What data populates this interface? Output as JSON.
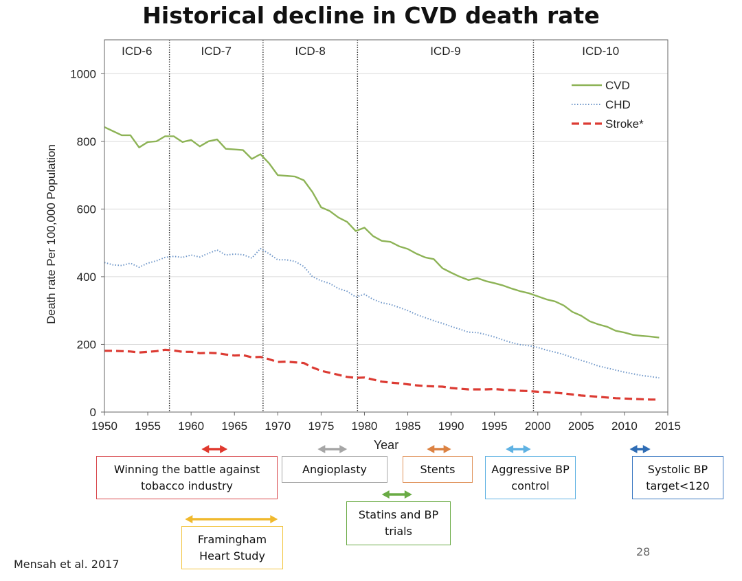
{
  "slide": {
    "title": "Historical decline in CVD death rate",
    "citation": "Mensah et al. 2017",
    "page_number": "28"
  },
  "chart_data": {
    "type": "line",
    "title": "",
    "xlabel": "Year",
    "ylabel": "Death rate Per 100,000 Population",
    "xlim": [
      1950,
      2015
    ],
    "ylim": [
      0,
      1100
    ],
    "x_ticks": [
      1950,
      1955,
      1960,
      1965,
      1970,
      1975,
      1980,
      1985,
      1990,
      1995,
      2000,
      2005,
      2010,
      2015
    ],
    "y_ticks": [
      0,
      200,
      400,
      600,
      800,
      1000
    ],
    "grid": "horizontal",
    "legend_position": "top-right",
    "icd_eras": [
      {
        "label": "ICD-6",
        "start": 1950,
        "end": 1957.5
      },
      {
        "label": "ICD-7",
        "start": 1957.5,
        "end": 1968.3
      },
      {
        "label": "ICD-8",
        "start": 1968.3,
        "end": 1979.2
      },
      {
        "label": "ICD-9",
        "start": 1979.2,
        "end": 1999.5
      },
      {
        "label": "ICD-10",
        "start": 1999.5,
        "end": 2015
      }
    ],
    "series": [
      {
        "name": "CVD",
        "color": "#8db356",
        "style": "solid",
        "x": [
          1950,
          1951,
          1952,
          1953,
          1954,
          1955,
          1956,
          1957,
          1958,
          1959,
          1960,
          1961,
          1962,
          1963,
          1964,
          1965,
          1966,
          1967,
          1968,
          1969,
          1970,
          1971,
          1972,
          1973,
          1974,
          1975,
          1976,
          1977,
          1978,
          1979,
          1980,
          1981,
          1982,
          1983,
          1984,
          1985,
          1986,
          1987,
          1988,
          1989,
          1990,
          1991,
          1992,
          1993,
          1994,
          1995,
          1996,
          1997,
          1998,
          1999,
          2000,
          2001,
          2002,
          2003,
          2004,
          2005,
          2006,
          2007,
          2008,
          2009,
          2010,
          2011,
          2012,
          2013,
          2014
        ],
        "values": [
          842,
          830,
          818,
          818,
          782,
          798,
          800,
          815,
          815,
          798,
          804,
          785,
          800,
          806,
          778,
          776,
          774,
          748,
          762,
          735,
          700,
          698,
          696,
          685,
          650,
          605,
          594,
          575,
          562,
          535,
          545,
          520,
          506,
          503,
          490,
          482,
          468,
          457,
          452,
          425,
          412,
          400,
          390,
          396,
          387,
          381,
          374,
          365,
          357,
          351,
          342,
          333,
          327,
          315,
          296,
          285,
          268,
          259,
          252,
          240,
          235,
          228,
          225,
          223,
          220
        ]
      },
      {
        "name": "CHD",
        "color": "#6f97c9",
        "style": "dotted",
        "x": [
          1950,
          1951,
          1952,
          1953,
          1954,
          1955,
          1956,
          1957,
          1958,
          1959,
          1960,
          1961,
          1962,
          1963,
          1964,
          1965,
          1966,
          1967,
          1968,
          1969,
          1970,
          1971,
          1972,
          1973,
          1974,
          1975,
          1976,
          1977,
          1978,
          1979,
          1980,
          1981,
          1982,
          1983,
          1984,
          1985,
          1986,
          1987,
          1988,
          1989,
          1990,
          1991,
          1992,
          1993,
          1994,
          1995,
          1996,
          1997,
          1998,
          1999,
          2000,
          2001,
          2002,
          2003,
          2004,
          2005,
          2006,
          2007,
          2008,
          2009,
          2010,
          2011,
          2012,
          2013,
          2014
        ],
        "values": [
          442,
          435,
          433,
          440,
          428,
          440,
          447,
          457,
          460,
          457,
          464,
          458,
          469,
          479,
          464,
          467,
          465,
          455,
          483,
          468,
          450,
          450,
          445,
          430,
          400,
          388,
          380,
          365,
          357,
          340,
          348,
          333,
          323,
          318,
          309,
          300,
          288,
          279,
          270,
          262,
          253,
          245,
          236,
          235,
          229,
          222,
          213,
          205,
          199,
          196,
          191,
          183,
          177,
          170,
          161,
          153,
          145,
          136,
          130,
          124,
          118,
          113,
          108,
          105,
          101
        ]
      },
      {
        "name": "Stroke*",
        "color": "#dc3b33",
        "style": "dashed",
        "x": [
          1950,
          1951,
          1952,
          1953,
          1954,
          1955,
          1956,
          1957,
          1958,
          1959,
          1960,
          1961,
          1962,
          1963,
          1964,
          1965,
          1966,
          1967,
          1968,
          1969,
          1970,
          1971,
          1972,
          1973,
          1974,
          1975,
          1976,
          1977,
          1978,
          1979,
          1980,
          1981,
          1982,
          1983,
          1984,
          1985,
          1986,
          1987,
          1988,
          1989,
          1990,
          1991,
          1992,
          1993,
          1994,
          1995,
          1996,
          1997,
          1998,
          1999,
          2000,
          2001,
          2002,
          2003,
          2004,
          2005,
          2006,
          2007,
          2008,
          2009,
          2010,
          2011,
          2012,
          2013,
          2014
        ],
        "values": [
          181,
          181,
          180,
          179,
          176,
          178,
          180,
          184,
          182,
          178,
          178,
          174,
          175,
          174,
          170,
          167,
          168,
          162,
          163,
          156,
          148,
          149,
          147,
          145,
          132,
          122,
          116,
          110,
          104,
          101,
          102,
          96,
          90,
          87,
          85,
          82,
          79,
          77,
          76,
          75,
          71,
          69,
          67,
          67,
          67,
          68,
          66,
          65,
          63,
          62,
          60,
          59,
          57,
          55,
          52,
          49,
          47,
          45,
          43,
          41,
          40,
          39,
          38,
          37,
          37
        ]
      }
    ],
    "interventions": [
      {
        "label": "Winning the battle against tobacco industry",
        "arrow_from": 1961.2,
        "arrow_to": 1964.2,
        "color": "#e0392e",
        "border": "#d8474b"
      },
      {
        "label": "Framingham Heart Study",
        "arrow_from": 1959.3,
        "arrow_to": 1970.0,
        "color": "#f0b92e",
        "border": "#f2c43f"
      },
      {
        "label": "Angioplasty",
        "arrow_from": 1974.6,
        "arrow_to": 1978.0,
        "color": "#a6a6a6",
        "border": "#a6a6a6"
      },
      {
        "label": "Statins and BP trials",
        "arrow_from": 1982.0,
        "arrow_to": 1985.5,
        "color": "#6aab45",
        "border": "#6aab45"
      },
      {
        "label": "Stents",
        "arrow_from": 1987.2,
        "arrow_to": 1990.0,
        "color": "#dc8242",
        "border": "#e0925a"
      },
      {
        "label": "Aggressive BP control",
        "arrow_from": 1996.3,
        "arrow_to": 1999.2,
        "color": "#5fb2e3",
        "border": "#5fb2e3"
      },
      {
        "label": "Systolic BP target<120",
        "arrow_from": 2010.6,
        "arrow_to": 2013.0,
        "color": "#2f6db5",
        "border": "#3a78c2"
      }
    ]
  }
}
